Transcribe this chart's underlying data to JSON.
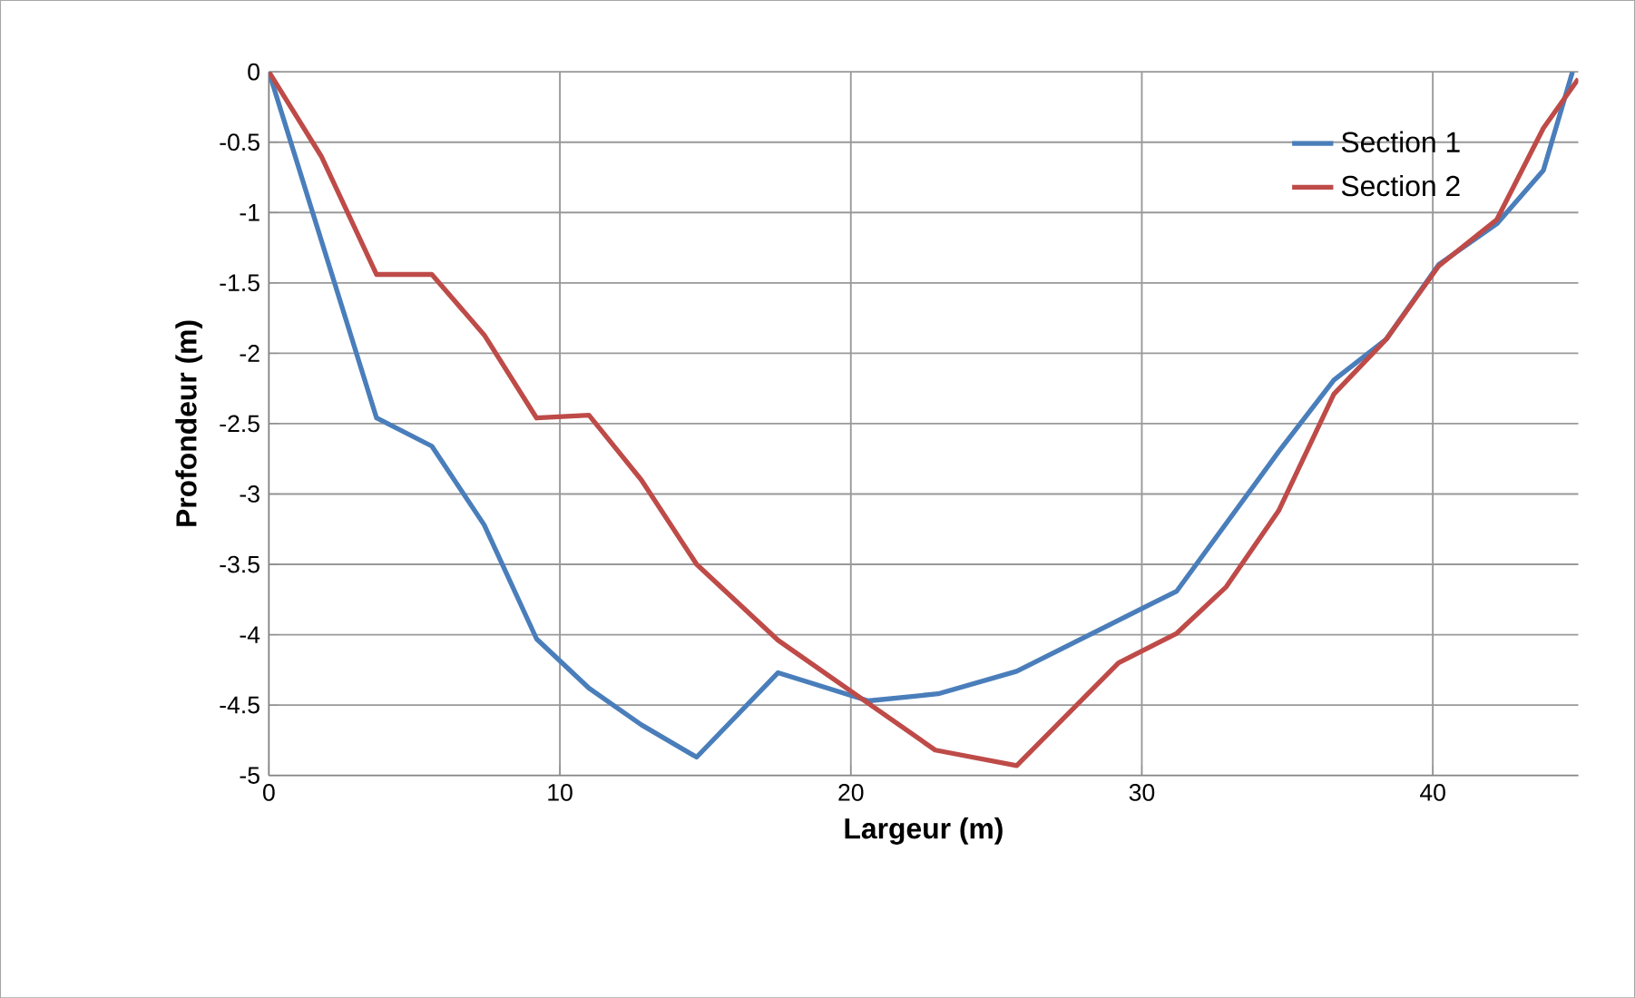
{
  "chart_data": {
    "type": "line",
    "xlabel": "Largeur (m)",
    "ylabel": "Profondeur (m)",
    "xlim": [
      0,
      45
    ],
    "ylim": [
      -5,
      0
    ],
    "xticks": [
      0,
      10,
      20,
      30,
      40
    ],
    "yticks": [
      0,
      {
        "value": -0.5,
        "label": "-0.5"
      },
      -1,
      {
        "value": -1.5,
        "label": "-1.5"
      },
      -2,
      {
        "value": -2.5,
        "label": "-2.5"
      },
      -3,
      {
        "value": -3.5,
        "label": "-3.5"
      },
      -4,
      {
        "value": -4.5,
        "label": "-4.5"
      },
      -5
    ],
    "grid": true,
    "legend": "top right",
    "marker": "none",
    "line_style": "solid",
    "series": [
      {
        "name": "Section 1",
        "color": "#4a7ebb",
        "x": [
          0,
          3.7,
          5.6,
          7.4,
          9.2,
          11,
          12.8,
          14.7,
          17.5,
          20.6,
          23,
          25.7,
          31.2,
          34.7,
          36.6,
          38.4,
          40.2,
          42.2,
          43.8,
          44.8
        ],
        "values": [
          0,
          -2.46,
          -2.66,
          -3.22,
          -4.03,
          -4.38,
          -4.64,
          -4.87,
          -4.27,
          -4.47,
          -4.42,
          -4.26,
          -3.69,
          -2.7,
          -2.19,
          -1.9,
          -1.37,
          -1.08,
          -0.7,
          0
        ]
      },
      {
        "name": "Section 2",
        "color": "#be4b48",
        "x": [
          0,
          1.8,
          3.7,
          5.6,
          7.4,
          9.2,
          11,
          12.8,
          14.7,
          17.5,
          22.9,
          25.7,
          29.2,
          31.2,
          32.9,
          34.7,
          36.6,
          38.4,
          40.2,
          42.2,
          43.8,
          45
        ],
        "values": [
          0,
          -0.6,
          -1.44,
          -1.44,
          -1.87,
          -2.46,
          -2.44,
          -2.9,
          -3.5,
          -4.04,
          -4.82,
          -4.93,
          -4.2,
          -3.99,
          -3.66,
          -3.12,
          -2.29,
          -1.9,
          -1.38,
          -1.05,
          -0.4,
          -0.05
        ]
      }
    ]
  }
}
